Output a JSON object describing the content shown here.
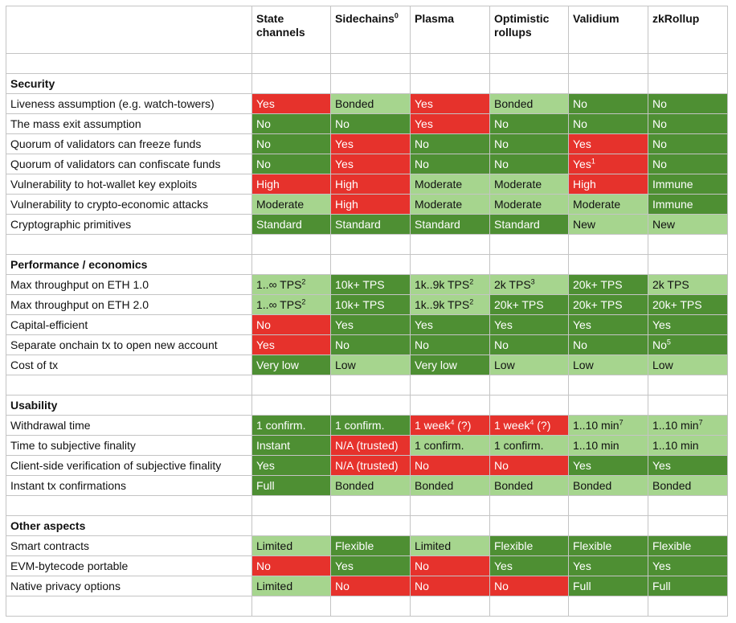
{
  "columns": [
    {
      "label": "State channels",
      "sup": ""
    },
    {
      "label": "Sidechains",
      "sup": "0"
    },
    {
      "label": "Plasma",
      "sup": ""
    },
    {
      "label": "Optimistic rollups",
      "sup": ""
    },
    {
      "label": "Validium",
      "sup": ""
    },
    {
      "label": "zkRollup",
      "sup": ""
    }
  ],
  "colors": {
    "red": "#e6322c",
    "dark_green": "#4e8f33",
    "light_green": "#a6d58e",
    "white": "#ffffff"
  },
  "sections": [
    {
      "title": "Security",
      "rows": [
        {
          "label": "Liveness assumption (e.g. watch-towers)",
          "cells": [
            {
              "text": "Yes",
              "color": "red"
            },
            {
              "text": "Bonded",
              "color": "light"
            },
            {
              "text": "Yes",
              "color": "red"
            },
            {
              "text": "Bonded",
              "color": "light"
            },
            {
              "text": "No",
              "color": "dark"
            },
            {
              "text": "No",
              "color": "dark"
            }
          ]
        },
        {
          "label": "The mass exit assumption",
          "cells": [
            {
              "text": "No",
              "color": "dark"
            },
            {
              "text": "No",
              "color": "dark"
            },
            {
              "text": "Yes",
              "color": "red"
            },
            {
              "text": "No",
              "color": "dark"
            },
            {
              "text": "No",
              "color": "dark"
            },
            {
              "text": "No",
              "color": "dark"
            }
          ]
        },
        {
          "label": "Quorum of validators can freeze funds",
          "cells": [
            {
              "text": "No",
              "color": "dark"
            },
            {
              "text": "Yes",
              "color": "red"
            },
            {
              "text": "No",
              "color": "dark"
            },
            {
              "text": "No",
              "color": "dark"
            },
            {
              "text": "Yes",
              "color": "red"
            },
            {
              "text": "No",
              "color": "dark"
            }
          ]
        },
        {
          "label": "Quorum of validators can confiscate funds",
          "cells": [
            {
              "text": "No",
              "color": "dark"
            },
            {
              "text": "Yes",
              "color": "red"
            },
            {
              "text": "No",
              "color": "dark"
            },
            {
              "text": "No",
              "color": "dark"
            },
            {
              "text": "Yes",
              "sup": "1",
              "color": "red"
            },
            {
              "text": "No",
              "color": "dark"
            }
          ]
        },
        {
          "label": "Vulnerability to hot-wallet key exploits",
          "cells": [
            {
              "text": "High",
              "color": "red"
            },
            {
              "text": "High",
              "color": "red"
            },
            {
              "text": "Moderate",
              "color": "light"
            },
            {
              "text": "Moderate",
              "color": "light"
            },
            {
              "text": "High",
              "color": "red"
            },
            {
              "text": "Immune",
              "color": "dark"
            }
          ]
        },
        {
          "label": "Vulnerability to crypto-economic attacks",
          "cells": [
            {
              "text": "Moderate",
              "color": "light"
            },
            {
              "text": "High",
              "color": "red"
            },
            {
              "text": "Moderate",
              "color": "light"
            },
            {
              "text": "Moderate",
              "color": "light"
            },
            {
              "text": "Moderate",
              "color": "light"
            },
            {
              "text": "Immune",
              "color": "dark"
            }
          ]
        },
        {
          "label": "Cryptographic primitives",
          "cells": [
            {
              "text": "Standard",
              "color": "dark"
            },
            {
              "text": "Standard",
              "color": "dark"
            },
            {
              "text": "Standard",
              "color": "dark"
            },
            {
              "text": "Standard",
              "color": "dark"
            },
            {
              "text": "New",
              "color": "light"
            },
            {
              "text": "New",
              "color": "light"
            }
          ]
        }
      ]
    },
    {
      "title": "Performance / economics",
      "rows": [
        {
          "label": "Max throughput on ETH 1.0",
          "cells": [
            {
              "text": "1..∞ TPS",
              "sup": "2",
              "color": "light"
            },
            {
              "text": "10k+ TPS",
              "color": "dark"
            },
            {
              "text": "1k..9k TPS",
              "sup": "2",
              "color": "light"
            },
            {
              "text": "2k TPS",
              "sup": "3",
              "color": "light"
            },
            {
              "text": "20k+ TPS",
              "color": "dark"
            },
            {
              "text": "2k TPS",
              "color": "light"
            }
          ]
        },
        {
          "label": "Max throughput on ETH 2.0",
          "cells": [
            {
              "text": "1..∞ TPS",
              "sup": "2",
              "color": "light"
            },
            {
              "text": "10k+ TPS",
              "color": "dark"
            },
            {
              "text": "1k..9k TPS",
              "sup": "2",
              "color": "light"
            },
            {
              "text": "20k+ TPS",
              "color": "dark"
            },
            {
              "text": "20k+ TPS",
              "color": "dark"
            },
            {
              "text": "20k+ TPS",
              "color": "dark"
            }
          ]
        },
        {
          "label": "Capital-efficient",
          "cells": [
            {
              "text": "No",
              "color": "red"
            },
            {
              "text": "Yes",
              "color": "dark"
            },
            {
              "text": "Yes",
              "color": "dark"
            },
            {
              "text": "Yes",
              "color": "dark"
            },
            {
              "text": "Yes",
              "color": "dark"
            },
            {
              "text": "Yes",
              "color": "dark"
            }
          ]
        },
        {
          "label": "Separate onchain tx to open new account",
          "cells": [
            {
              "text": "Yes",
              "color": "red"
            },
            {
              "text": "No",
              "color": "dark"
            },
            {
              "text": "No",
              "color": "dark"
            },
            {
              "text": "No",
              "color": "dark"
            },
            {
              "text": "No",
              "color": "dark"
            },
            {
              "text": "No",
              "sup": "5",
              "color": "dark"
            }
          ]
        },
        {
          "label": "Cost of tx",
          "cells": [
            {
              "text": "Very low",
              "color": "dark"
            },
            {
              "text": "Low",
              "color": "light"
            },
            {
              "text": "Very low",
              "color": "dark"
            },
            {
              "text": "Low",
              "color": "light"
            },
            {
              "text": "Low",
              "color": "light"
            },
            {
              "text": "Low",
              "color": "light"
            }
          ]
        }
      ]
    },
    {
      "title": "Usability",
      "rows": [
        {
          "label": "Withdrawal time",
          "cells": [
            {
              "text": "1 confirm.",
              "color": "dark"
            },
            {
              "text": "1 confirm.",
              "color": "dark"
            },
            {
              "text": "1 week",
              "sup": "4",
              "extra": " (?)",
              "color": "red"
            },
            {
              "text": "1 week",
              "sup": "4",
              "extra": " (?)",
              "color": "red"
            },
            {
              "text": "1..10 min",
              "sup": "7",
              "color": "light"
            },
            {
              "text": "1..10 min",
              "sup": "7",
              "color": "light"
            }
          ]
        },
        {
          "label": "Time to subjective finality",
          "cells": [
            {
              "text": "Instant",
              "color": "dark"
            },
            {
              "text": "N/A (trusted)",
              "color": "red"
            },
            {
              "text": "1 confirm.",
              "color": "light"
            },
            {
              "text": "1 confirm.",
              "color": "light"
            },
            {
              "text": "1..10 min",
              "color": "light"
            },
            {
              "text": "1..10 min",
              "color": "light"
            }
          ]
        },
        {
          "label": "Client-side verification of subjective finality",
          "cells": [
            {
              "text": "Yes",
              "color": "dark"
            },
            {
              "text": "N/A (trusted)",
              "color": "red"
            },
            {
              "text": "No",
              "color": "red"
            },
            {
              "text": "No",
              "color": "red"
            },
            {
              "text": "Yes",
              "color": "dark"
            },
            {
              "text": "Yes",
              "color": "dark"
            }
          ]
        },
        {
          "label": "Instant tx confirmations",
          "cells": [
            {
              "text": "Full",
              "color": "dark"
            },
            {
              "text": "Bonded",
              "color": "light"
            },
            {
              "text": "Bonded",
              "color": "light"
            },
            {
              "text": "Bonded",
              "color": "light"
            },
            {
              "text": "Bonded",
              "color": "light"
            },
            {
              "text": "Bonded",
              "color": "light"
            }
          ]
        }
      ]
    },
    {
      "title": "Other aspects",
      "rows": [
        {
          "label": "Smart contracts",
          "cells": [
            {
              "text": "Limited",
              "color": "light"
            },
            {
              "text": "Flexible",
              "color": "dark"
            },
            {
              "text": "Limited",
              "color": "light"
            },
            {
              "text": "Flexible",
              "color": "dark"
            },
            {
              "text": "Flexible",
              "color": "dark"
            },
            {
              "text": "Flexible",
              "color": "dark"
            }
          ]
        },
        {
          "label": "EVM-bytecode portable",
          "cells": [
            {
              "text": "No",
              "color": "red"
            },
            {
              "text": "Yes",
              "color": "dark"
            },
            {
              "text": "No",
              "color": "red"
            },
            {
              "text": "Yes",
              "color": "dark"
            },
            {
              "text": "Yes",
              "color": "dark"
            },
            {
              "text": "Yes",
              "color": "dark"
            }
          ]
        },
        {
          "label": "Native privacy options",
          "cells": [
            {
              "text": "Limited",
              "color": "light"
            },
            {
              "text": "No",
              "color": "red"
            },
            {
              "text": "No",
              "color": "red"
            },
            {
              "text": "No",
              "color": "red"
            },
            {
              "text": "Full",
              "color": "dark"
            },
            {
              "text": "Full",
              "color": "dark"
            }
          ]
        }
      ]
    }
  ]
}
